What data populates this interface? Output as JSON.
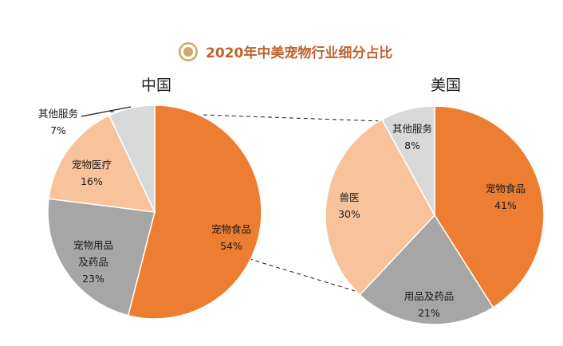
{
  "colors": {
    "title": "#c0622a",
    "food": "#ed7d31",
    "medicine": "#a6a6a6",
    "medical": "#f8c39b",
    "other": "#d9d9d9",
    "text": "#1a1a1a",
    "badge_outer": "#cfa86a",
    "badge_inner": "#ffffff"
  },
  "title": "2020年中美宠物行业细分占比",
  "chart_data": [
    {
      "type": "pie",
      "title": "中国",
      "series": [
        {
          "label": [
            "宠物食品"
          ],
          "pct": "54%",
          "value": 54,
          "color": "#ed7d31"
        },
        {
          "label": [
            "宠物用品",
            "及药品"
          ],
          "pct": "23%",
          "value": 23,
          "color": "#a6a6a6"
        },
        {
          "label": [
            "宠物医疗"
          ],
          "pct": "16%",
          "value": 16,
          "color": "#f8c39b"
        },
        {
          "label": [
            "其他服务"
          ],
          "pct": "7%",
          "value": 7,
          "color": "#d9d9d9"
        }
      ]
    },
    {
      "type": "pie",
      "title": "美国",
      "series": [
        {
          "label": [
            "宠物食品"
          ],
          "pct": "41%",
          "value": 41,
          "color": "#ed7d31"
        },
        {
          "label": [
            "用品及药品"
          ],
          "pct": "21%",
          "value": 21,
          "color": "#a6a6a6"
        },
        {
          "label": [
            "兽医"
          ],
          "pct": "30%",
          "value": 30,
          "color": "#f8c39b"
        },
        {
          "label": [
            "其他服务"
          ],
          "pct": "8%",
          "value": 8,
          "color": "#d9d9d9"
        }
      ]
    }
  ]
}
